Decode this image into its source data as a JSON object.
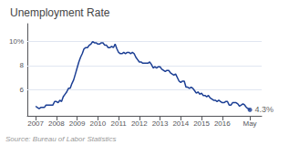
{
  "chart_data": {
    "type": "line",
    "title": "Unemployment Rate",
    "source": "Source: Bureau of Labor Statistics",
    "color": "#1c3f94",
    "grid": true,
    "xlim": [
      2006.6,
      2017.9
    ],
    "xticks": [
      2007,
      2008,
      2009,
      2010,
      2011,
      2012,
      2013,
      2014,
      2015,
      2016,
      {
        "value": 2017.33,
        "label": "May"
      }
    ],
    "ylim": [
      3.8,
      11.5
    ],
    "yticks": [
      6,
      8,
      {
        "value": 10,
        "label": "10%"
      }
    ],
    "annotations": [
      {
        "x": 2017.333,
        "y": 4.3,
        "text": "4.3%"
      }
    ],
    "x": [
      2007.0,
      2007.083,
      2007.167,
      2007.25,
      2007.333,
      2007.417,
      2007.5,
      2007.583,
      2007.667,
      2007.75,
      2007.833,
      2007.917,
      2008.0,
      2008.083,
      2008.167,
      2008.25,
      2008.333,
      2008.417,
      2008.5,
      2008.583,
      2008.667,
      2008.75,
      2008.833,
      2008.917,
      2009.0,
      2009.083,
      2009.167,
      2009.25,
      2009.333,
      2009.417,
      2009.5,
      2009.583,
      2009.667,
      2009.75,
      2009.833,
      2009.917,
      2010.0,
      2010.083,
      2010.167,
      2010.25,
      2010.333,
      2010.417,
      2010.5,
      2010.583,
      2010.667,
      2010.75,
      2010.833,
      2010.917,
      2011.0,
      2011.083,
      2011.167,
      2011.25,
      2011.333,
      2011.417,
      2011.5,
      2011.583,
      2011.667,
      2011.75,
      2011.833,
      2011.917,
      2012.0,
      2012.083,
      2012.167,
      2012.25,
      2012.333,
      2012.417,
      2012.5,
      2012.583,
      2012.667,
      2012.75,
      2012.833,
      2012.917,
      2013.0,
      2013.083,
      2013.167,
      2013.25,
      2013.333,
      2013.417,
      2013.5,
      2013.583,
      2013.667,
      2013.75,
      2013.833,
      2013.917,
      2014.0,
      2014.083,
      2014.167,
      2014.25,
      2014.333,
      2014.417,
      2014.5,
      2014.583,
      2014.667,
      2014.75,
      2014.833,
      2014.917,
      2015.0,
      2015.083,
      2015.167,
      2015.25,
      2015.333,
      2015.417,
      2015.5,
      2015.583,
      2015.667,
      2015.75,
      2015.833,
      2015.917,
      2016.0,
      2016.083,
      2016.167,
      2016.25,
      2016.333,
      2016.417,
      2016.5,
      2016.583,
      2016.667,
      2016.75,
      2016.833,
      2016.917,
      2017.0,
      2017.083,
      2017.167,
      2017.25,
      2017.333
    ],
    "values": [
      4.6,
      4.5,
      4.4,
      4.5,
      4.5,
      4.5,
      4.7,
      4.7,
      4.7,
      4.7,
      4.7,
      5.0,
      5.0,
      4.9,
      5.1,
      5.0,
      5.4,
      5.6,
      5.8,
      6.1,
      6.1,
      6.5,
      6.8,
      7.3,
      7.8,
      8.3,
      8.7,
      9.0,
      9.4,
      9.5,
      9.5,
      9.7,
      9.8,
      10.0,
      9.9,
      9.9,
      9.8,
      9.8,
      9.9,
      9.9,
      9.7,
      9.7,
      9.5,
      9.5,
      9.6,
      9.5,
      9.8,
      9.4,
      9.1,
      9.0,
      9.0,
      9.1,
      9.0,
      9.1,
      9.1,
      9.0,
      9.1,
      9.0,
      8.7,
      8.5,
      8.3,
      8.3,
      8.2,
      8.2,
      8.2,
      8.2,
      8.3,
      8.1,
      7.8,
      7.9,
      7.8,
      7.9,
      7.9,
      7.7,
      7.6,
      7.5,
      7.6,
      7.6,
      7.4,
      7.3,
      7.2,
      7.3,
      7.0,
      6.7,
      6.6,
      6.7,
      6.7,
      6.2,
      6.2,
      6.1,
      6.2,
      6.1,
      5.9,
      5.7,
      5.8,
      5.6,
      5.7,
      5.5,
      5.5,
      5.4,
      5.5,
      5.3,
      5.2,
      5.1,
      5.1,
      5.0,
      5.1,
      5.0,
      4.9,
      4.9,
      5.0,
      5.0,
      4.7,
      4.7,
      4.9,
      4.9,
      4.9,
      4.8,
      4.6,
      4.7,
      4.8,
      4.7,
      4.5,
      4.4,
      4.3
    ]
  }
}
